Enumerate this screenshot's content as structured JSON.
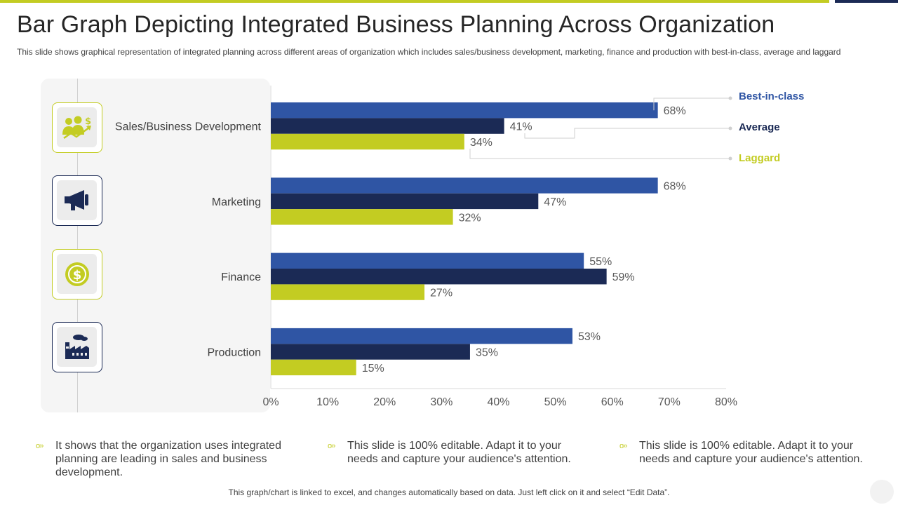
{
  "slide": {
    "title": "Bar Graph Depicting Integrated Business Planning Across Organization",
    "subtitle": "This slide shows graphical representation of integrated planning across different areas of organization which includes sales/business development,  marketing, finance and production with best-in-class, average and laggard",
    "bullets": [
      "It shows that the organization uses integrated planning are leading in sales and business development.",
      "This slide is 100% editable. Adapt it to your needs and capture your audience's attention.",
      "This slide is 100% editable. Adapt it to your needs and capture your audience's attention."
    ],
    "footnote": "This graph/chart is linked to excel, and changes automatically based on data. Just left click on it and select “Edit Data”.",
    "icons": [
      "sales-people-icon",
      "megaphone-icon",
      "dollar-coin-icon",
      "factory-icon"
    ],
    "colors": {
      "accent_lime": "#c3cc22",
      "navy": "#1b2a55",
      "blue": "#2f55a4"
    }
  },
  "chart_data": {
    "type": "bar",
    "orientation": "horizontal",
    "categories": [
      "Sales/Business Development",
      "Marketing",
      "Finance",
      "Production"
    ],
    "series": [
      {
        "name": "Best-in-class",
        "values": [
          68,
          68,
          55,
          53
        ],
        "color": "#2f55a4",
        "label_color": "#2f55a4"
      },
      {
        "name": "Average",
        "values": [
          41,
          47,
          59,
          35
        ],
        "color": "#1b2a55",
        "label_color": "#1b2a55"
      },
      {
        "name": "Laggard",
        "values": [
          34,
          32,
          27,
          15
        ],
        "color": "#c3cc22",
        "label_color": "#c3cc22"
      }
    ],
    "value_suffix": "%",
    "xlim": [
      0,
      80
    ],
    "x_ticks": [
      0,
      10,
      20,
      30,
      40,
      50,
      60,
      70,
      80
    ],
    "x_tick_labels": [
      "0%",
      "10%",
      "20%",
      "30%",
      "40%",
      "50%",
      "60%",
      "70%",
      "80%"
    ],
    "legend_position": "right",
    "grid": false
  }
}
